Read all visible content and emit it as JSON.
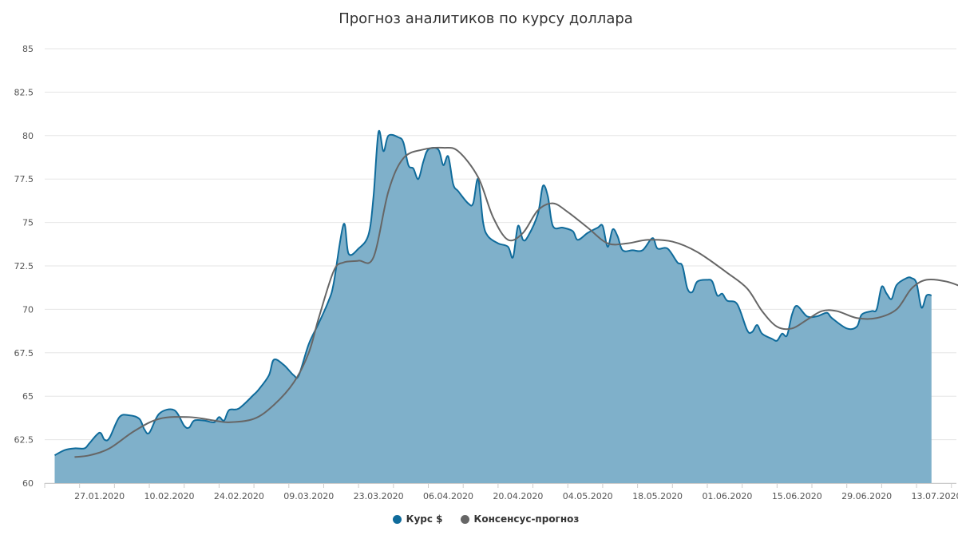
{
  "chart_data": {
    "type": "area",
    "title": "Прогноз аналитиков по курсу доллара",
    "xlabel": "",
    "ylabel": "",
    "ylim": [
      60,
      85
    ],
    "yticks": [
      "60",
      "62.5",
      "65",
      "67.5",
      "70",
      "72.5",
      "75",
      "77.5",
      "80",
      "82.5",
      "85"
    ],
    "xlim": [
      "2020-01-16",
      "2020-07-17"
    ],
    "xticks": [
      {
        "date": "2020-01-27",
        "label": "27.01.2020"
      },
      {
        "date": "2020-02-10",
        "label": "10.02.2020"
      },
      {
        "date": "2020-02-24",
        "label": "24.02.2020"
      },
      {
        "date": "2020-03-09",
        "label": "09.03.2020"
      },
      {
        "date": "2020-03-23",
        "label": "23.03.2020"
      },
      {
        "date": "2020-04-06",
        "label": "06.04.2020"
      },
      {
        "date": "2020-04-20",
        "label": "20.04.2020"
      },
      {
        "date": "2020-05-04",
        "label": "04.05.2020"
      },
      {
        "date": "2020-05-18",
        "label": "18.05.2020"
      },
      {
        "date": "2020-06-01",
        "label": "01.06.2020"
      },
      {
        "date": "2020-06-15",
        "label": "15.06.2020"
      },
      {
        "date": "2020-06-29",
        "label": "29.06.2020"
      },
      {
        "date": "2020-07-13",
        "label": "13.07.2020"
      }
    ],
    "grid": true,
    "legend_position": "bottom-center",
    "series": [
      {
        "name": "Курс $",
        "type": "area",
        "color": "#0f6b9b",
        "fill": "#7fb0ca",
        "points": [
          [
            "2020-01-18",
            61.6
          ],
          [
            "2020-01-20",
            61.9
          ],
          [
            "2020-01-22",
            62.0
          ],
          [
            "2020-01-24",
            62.0
          ],
          [
            "2020-01-25",
            62.3
          ],
          [
            "2020-01-27",
            62.9
          ],
          [
            "2020-01-28",
            62.5
          ],
          [
            "2020-01-29",
            62.6
          ],
          [
            "2020-01-31",
            63.8
          ],
          [
            "2020-02-02",
            63.9
          ],
          [
            "2020-02-04",
            63.7
          ],
          [
            "2020-02-05",
            63.1
          ],
          [
            "2020-02-06",
            62.9
          ],
          [
            "2020-02-08",
            64.0
          ],
          [
            "2020-02-11",
            64.2
          ],
          [
            "2020-02-13",
            63.3
          ],
          [
            "2020-02-14",
            63.2
          ],
          [
            "2020-02-15",
            63.6
          ],
          [
            "2020-02-17",
            63.6
          ],
          [
            "2020-02-19",
            63.5
          ],
          [
            "2020-02-20",
            63.8
          ],
          [
            "2020-02-21",
            63.6
          ],
          [
            "2020-02-22",
            64.2
          ],
          [
            "2020-02-24",
            64.3
          ],
          [
            "2020-02-27",
            65.1
          ],
          [
            "2020-02-28",
            65.4
          ],
          [
            "2020-03-01",
            66.2
          ],
          [
            "2020-03-02",
            67.1
          ],
          [
            "2020-03-04",
            66.8
          ],
          [
            "2020-03-06",
            66.2
          ],
          [
            "2020-03-07",
            66.2
          ],
          [
            "2020-03-09",
            68.0
          ],
          [
            "2020-03-11",
            69.2
          ],
          [
            "2020-03-13",
            70.5
          ],
          [
            "2020-03-14",
            71.5
          ],
          [
            "2020-03-16",
            74.9
          ],
          [
            "2020-03-17",
            73.2
          ],
          [
            "2020-03-19",
            73.5
          ],
          [
            "2020-03-21",
            74.3
          ],
          [
            "2020-03-22",
            76.5
          ],
          [
            "2020-03-23",
            80.2
          ],
          [
            "2020-03-24",
            79.1
          ],
          [
            "2020-03-25",
            80.0
          ],
          [
            "2020-03-27",
            79.9
          ],
          [
            "2020-03-28",
            79.6
          ],
          [
            "2020-03-29",
            78.3
          ],
          [
            "2020-03-30",
            78.1
          ],
          [
            "2020-03-31",
            77.5
          ],
          [
            "2020-04-01",
            78.5
          ],
          [
            "2020-04-02",
            79.2
          ],
          [
            "2020-04-04",
            79.2
          ],
          [
            "2020-04-05",
            78.3
          ],
          [
            "2020-04-06",
            78.8
          ],
          [
            "2020-04-07",
            77.2
          ],
          [
            "2020-04-08",
            76.8
          ],
          [
            "2020-04-10",
            76.1
          ],
          [
            "2020-04-11",
            76.1
          ],
          [
            "2020-04-12",
            77.5
          ],
          [
            "2020-04-13",
            75.0
          ],
          [
            "2020-04-14",
            74.2
          ],
          [
            "2020-04-16",
            73.8
          ],
          [
            "2020-04-18",
            73.6
          ],
          [
            "2020-04-19",
            73.0
          ],
          [
            "2020-04-20",
            74.8
          ],
          [
            "2020-04-21",
            74.0
          ],
          [
            "2020-04-22",
            74.2
          ],
          [
            "2020-04-24",
            75.5
          ],
          [
            "2020-04-25",
            77.1
          ],
          [
            "2020-04-26",
            76.5
          ],
          [
            "2020-04-27",
            74.8
          ],
          [
            "2020-04-29",
            74.7
          ],
          [
            "2020-05-01",
            74.5
          ],
          [
            "2020-05-02",
            74.0
          ],
          [
            "2020-05-04",
            74.4
          ],
          [
            "2020-05-06",
            74.7
          ],
          [
            "2020-05-07",
            74.8
          ],
          [
            "2020-05-08",
            73.6
          ],
          [
            "2020-05-09",
            74.6
          ],
          [
            "2020-05-10",
            74.2
          ],
          [
            "2020-05-11",
            73.4
          ],
          [
            "2020-05-13",
            73.4
          ],
          [
            "2020-05-15",
            73.4
          ],
          [
            "2020-05-17",
            74.1
          ],
          [
            "2020-05-18",
            73.5
          ],
          [
            "2020-05-20",
            73.5
          ],
          [
            "2020-05-22",
            72.7
          ],
          [
            "2020-05-23",
            72.5
          ],
          [
            "2020-05-24",
            71.2
          ],
          [
            "2020-05-25",
            71.0
          ],
          [
            "2020-05-26",
            71.6
          ],
          [
            "2020-05-28",
            71.7
          ],
          [
            "2020-05-29",
            71.6
          ],
          [
            "2020-05-30",
            70.8
          ],
          [
            "2020-05-31",
            70.9
          ],
          [
            "2020-06-01",
            70.5
          ],
          [
            "2020-06-03",
            70.3
          ],
          [
            "2020-06-05",
            68.8
          ],
          [
            "2020-06-06",
            68.7
          ],
          [
            "2020-06-07",
            69.1
          ],
          [
            "2020-06-08",
            68.6
          ],
          [
            "2020-06-10",
            68.3
          ],
          [
            "2020-06-11",
            68.2
          ],
          [
            "2020-06-12",
            68.6
          ],
          [
            "2020-06-13",
            68.5
          ],
          [
            "2020-06-14",
            69.7
          ],
          [
            "2020-06-15",
            70.2
          ],
          [
            "2020-06-17",
            69.6
          ],
          [
            "2020-06-19",
            69.6
          ],
          [
            "2020-06-21",
            69.8
          ],
          [
            "2020-06-22",
            69.5
          ],
          [
            "2020-06-25",
            68.9
          ],
          [
            "2020-06-27",
            69.0
          ],
          [
            "2020-06-28",
            69.7
          ],
          [
            "2020-06-30",
            69.9
          ],
          [
            "2020-07-01",
            70.0
          ],
          [
            "2020-07-02",
            71.3
          ],
          [
            "2020-07-03",
            70.9
          ],
          [
            "2020-07-04",
            70.6
          ],
          [
            "2020-07-05",
            71.4
          ],
          [
            "2020-07-07",
            71.8
          ],
          [
            "2020-07-08",
            71.8
          ],
          [
            "2020-07-09",
            71.5
          ],
          [
            "2020-07-10",
            70.1
          ],
          [
            "2020-07-11",
            70.8
          ],
          [
            "2020-07-12",
            70.8
          ]
        ]
      },
      {
        "name": "Консенсус-прогноз",
        "type": "line",
        "color": "#666666",
        "points": [
          [
            "2020-01-22",
            61.5
          ],
          [
            "2020-01-25",
            61.6
          ],
          [
            "2020-01-29",
            62.0
          ],
          [
            "2020-02-03",
            63.0
          ],
          [
            "2020-02-08",
            63.7
          ],
          [
            "2020-02-14",
            63.8
          ],
          [
            "2020-02-19",
            63.6
          ],
          [
            "2020-02-22",
            63.5
          ],
          [
            "2020-02-27",
            63.7
          ],
          [
            "2020-03-02",
            64.5
          ],
          [
            "2020-03-06",
            65.8
          ],
          [
            "2020-03-09",
            67.5
          ],
          [
            "2020-03-11",
            69.5
          ],
          [
            "2020-03-14",
            72.2
          ],
          [
            "2020-03-16",
            72.7
          ],
          [
            "2020-03-19",
            72.8
          ],
          [
            "2020-03-22",
            73.0
          ],
          [
            "2020-03-25",
            76.8
          ],
          [
            "2020-03-28",
            78.7
          ],
          [
            "2020-04-01",
            79.2
          ],
          [
            "2020-04-05",
            79.3
          ],
          [
            "2020-04-08",
            79.1
          ],
          [
            "2020-04-12",
            77.6
          ],
          [
            "2020-04-15",
            75.3
          ],
          [
            "2020-04-18",
            74.0
          ],
          [
            "2020-04-21",
            74.4
          ],
          [
            "2020-04-24",
            75.7
          ],
          [
            "2020-04-27",
            76.1
          ],
          [
            "2020-04-30",
            75.6
          ],
          [
            "2020-05-04",
            74.7
          ],
          [
            "2020-05-08",
            73.8
          ],
          [
            "2020-05-12",
            73.8
          ],
          [
            "2020-05-16",
            74.0
          ],
          [
            "2020-05-21",
            73.9
          ],
          [
            "2020-05-26",
            73.3
          ],
          [
            "2020-06-01",
            72.1
          ],
          [
            "2020-06-05",
            71.2
          ],
          [
            "2020-06-08",
            69.9
          ],
          [
            "2020-06-11",
            69.0
          ],
          [
            "2020-06-14",
            68.9
          ],
          [
            "2020-06-17",
            69.4
          ],
          [
            "2020-06-20",
            69.9
          ],
          [
            "2020-06-23",
            69.9
          ],
          [
            "2020-06-27",
            69.5
          ],
          [
            "2020-07-01",
            69.5
          ],
          [
            "2020-07-05",
            70.0
          ],
          [
            "2020-07-08",
            71.2
          ],
          [
            "2020-07-11",
            71.7
          ],
          [
            "2020-07-15",
            71.6
          ],
          [
            "2020-07-19",
            71.2
          ]
        ]
      }
    ]
  }
}
